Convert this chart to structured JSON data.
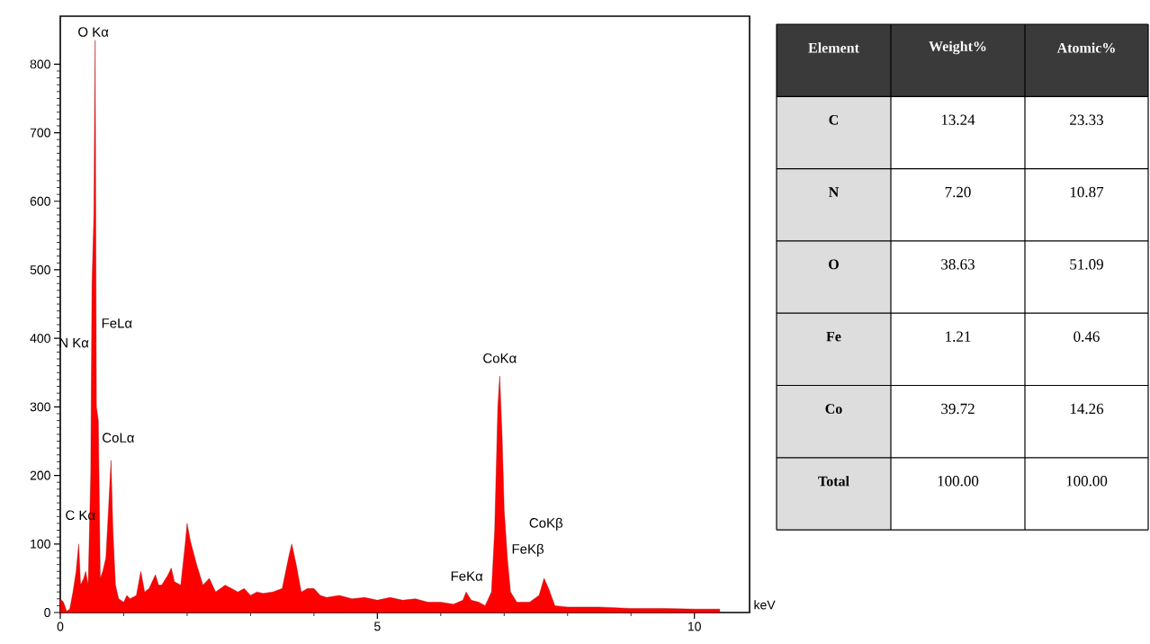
{
  "chart_data": [
    {
      "type": "area",
      "xlabel": "keV",
      "color": "#ff0000",
      "x": [
        0,
        0.05,
        0.1,
        0.15,
        0.2,
        0.25,
        0.29,
        0.32,
        0.37,
        0.4,
        0.44,
        0.48,
        0.5,
        0.53,
        0.55,
        0.57,
        0.6,
        0.63,
        0.67,
        0.72,
        0.76,
        0.8,
        0.83,
        0.87,
        0.92,
        1.0,
        1.05,
        1.1,
        1.2,
        1.27,
        1.33,
        1.4,
        1.5,
        1.55,
        1.6,
        1.7,
        1.75,
        1.8,
        1.9,
        1.97,
        2.0,
        2.05,
        2.15,
        2.25,
        2.35,
        2.45,
        2.6,
        2.7,
        2.8,
        2.9,
        3.0,
        3.1,
        3.2,
        3.35,
        3.5,
        3.6,
        3.65,
        3.72,
        3.8,
        3.9,
        4.0,
        4.1,
        4.2,
        4.4,
        4.6,
        4.8,
        5.0,
        5.2,
        5.4,
        5.6,
        5.8,
        6.0,
        6.2,
        6.35,
        6.4,
        6.48,
        6.6,
        6.7,
        6.8,
        6.85,
        6.9,
        6.93,
        6.97,
        7.0,
        7.05,
        7.1,
        7.2,
        7.4,
        7.55,
        7.63,
        7.7,
        7.8,
        8.0,
        8.5,
        9.0,
        9.5,
        10.0,
        10.4
      ],
      "values": [
        20,
        15,
        2,
        5,
        30,
        60,
        100,
        40,
        50,
        60,
        40,
        200,
        480,
        580,
        835,
        300,
        280,
        50,
        60,
        80,
        150,
        222,
        120,
        40,
        20,
        15,
        25,
        20,
        25,
        60,
        30,
        35,
        55,
        40,
        40,
        55,
        65,
        45,
        40,
        100,
        130,
        105,
        70,
        40,
        50,
        30,
        40,
        35,
        30,
        35,
        25,
        30,
        28,
        30,
        35,
        80,
        100,
        70,
        30,
        35,
        35,
        25,
        22,
        25,
        20,
        22,
        18,
        22,
        18,
        20,
        15,
        15,
        12,
        18,
        30,
        18,
        15,
        10,
        30,
        120,
        300,
        345,
        250,
        150,
        80,
        30,
        15,
        15,
        25,
        50,
        35,
        10,
        8,
        8,
        6,
        6,
        5,
        5
      ],
      "xlim": [
        0,
        10.87
      ],
      "ylim": [
        0,
        870
      ],
      "xticks": [
        0,
        5,
        10
      ],
      "yticks": [
        0,
        100,
        200,
        300,
        400,
        500,
        600,
        700,
        800
      ],
      "annotations": [
        "O Kα",
        "FeLα",
        "N Kα",
        "CoLα",
        "C Kα",
        "CoKα",
        "CoKβ",
        "FeKβ",
        "FeKα"
      ]
    },
    {
      "type": "other",
      "xlabel": "Element",
      "categories": [
        "C",
        "N",
        "O",
        "Fe",
        "Co",
        "Total"
      ],
      "series": [
        {
          "name": "Weight%",
          "values": [
            13.24,
            7.2,
            38.63,
            1.21,
            39.72,
            100.0
          ],
          "value_labels": [
            "13.24",
            "7.20",
            "38.63",
            "1.21",
            "39.72",
            "100.00"
          ]
        },
        {
          "name": "Atomic%",
          "values": [
            23.33,
            10.87,
            51.09,
            0.46,
            14.26,
            100.0
          ],
          "value_labels": [
            "23.33",
            "10.87",
            "51.09",
            "0.46",
            "14.26",
            "100.00"
          ]
        }
      ]
    }
  ]
}
